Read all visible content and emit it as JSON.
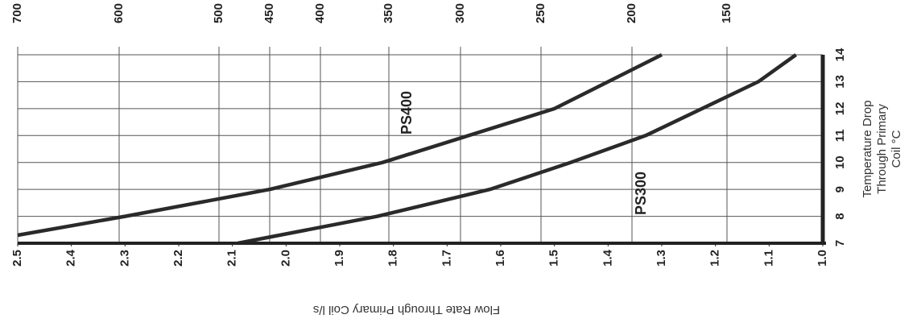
{
  "chart_data": {
    "type": "line",
    "rotated": "image rotated 90 degrees clockwise",
    "x_axis": {
      "label": "Flow Rate Through Primary Coil l/s",
      "ticks": [
        "2.5",
        "2.4",
        "2.3",
        "2.2",
        "2.1",
        "2.0",
        "1.9",
        "1.8",
        "1.7",
        "1.6",
        "1.5",
        "1.4",
        "1.3",
        "1.2",
        "1.1",
        "1.0"
      ],
      "range": [
        1.0,
        2.5
      ],
      "reversed": true
    },
    "y_axis": {
      "label_lines": [
        "Temperature Drop",
        "Through Primary",
        "Coil °C"
      ],
      "ticks": [
        "7",
        "8",
        "9",
        "10",
        "11",
        "12",
        "13",
        "14"
      ],
      "range": [
        7,
        14
      ]
    },
    "top_axis": {
      "ticks": [
        "700",
        "600",
        "500",
        "450",
        "400",
        "350",
        "300",
        "250",
        "200",
        "150"
      ],
      "values": [
        700,
        600,
        500,
        450,
        400,
        350,
        300,
        250,
        200,
        150
      ]
    },
    "grid": true,
    "series": [
      {
        "name": "PS400",
        "points": [
          [
            2.5,
            7.3
          ],
          [
            2.3,
            8.0
          ],
          [
            2.03,
            9.0
          ],
          [
            1.82,
            10.0
          ],
          [
            1.5,
            12.0
          ],
          [
            1.3,
            14.0
          ]
        ]
      },
      {
        "name": "PS300",
        "points": [
          [
            2.09,
            7.0
          ],
          [
            1.83,
            8.0
          ],
          [
            1.62,
            9.0
          ],
          [
            1.47,
            10.0
          ],
          [
            1.33,
            11.0
          ],
          [
            1.12,
            13.0
          ],
          [
            1.05,
            14.0
          ]
        ]
      }
    ]
  }
}
